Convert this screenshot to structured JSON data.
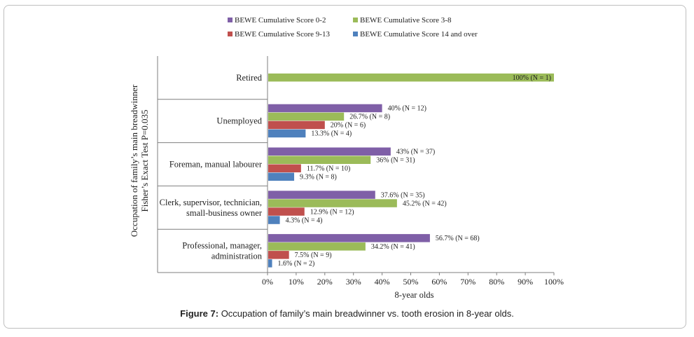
{
  "caption": {
    "label": "Figure 7:",
    "text": "Occupation of family’s main breadwinner vs. tooth erosion in 8-year olds."
  },
  "colors": {
    "series": [
      "#7f5fa7",
      "#9bbb59",
      "#c0504d",
      "#4f81bd"
    ],
    "axis": "#7f7f7f",
    "grid": "#d9d9d9"
  },
  "chart_data": {
    "type": "bar",
    "orientation": "horizontal",
    "title": "",
    "xlabel": "8-year olds",
    "ylabel_lines": [
      "Occupation of family’s main breadwinner",
      "Fisher’s Exact Test P=0.035"
    ],
    "xlim": [
      0,
      100
    ],
    "xticks": [
      "0%",
      "10%",
      "20%",
      "30%",
      "40%",
      "50%",
      "60%",
      "70%",
      "80%",
      "90%",
      "100%"
    ],
    "legend_position": "top",
    "categories": [
      {
        "lines": [
          "Retired"
        ]
      },
      {
        "lines": [
          "Unemployed"
        ]
      },
      {
        "lines": [
          "Foreman, manual labourer"
        ]
      },
      {
        "lines": [
          "Clerk, supervisor, technician,",
          "small-business owner"
        ]
      },
      {
        "lines": [
          "Professional, manager,",
          "administration"
        ]
      }
    ],
    "series": [
      {
        "name": "BEWE Cumulative Score 0-2",
        "values": [
          null,
          40,
          43,
          37.6,
          56.7
        ],
        "labels": [
          null,
          "40% (N = 12)",
          "43% (N = 37)",
          "37.6% (N = 35)",
          "56.7% (N = 68)"
        ]
      },
      {
        "name": "BEWE Cumulative Score 3-8",
        "values": [
          100,
          26.7,
          36,
          45.2,
          34.2
        ],
        "labels": [
          "100% (N = 1)",
          "26.7% (N = 8)",
          "36% (N = 31)",
          "45.2% (N = 42)",
          "34.2% (N = 41)"
        ]
      },
      {
        "name": "BEWE Cumulative Score 9-13",
        "values": [
          null,
          20,
          11.7,
          12.9,
          7.5
        ],
        "labels": [
          null,
          "20% (N = 6)",
          "11.7% (N = 10)",
          "12.9% (N = 12)",
          "7.5% (N = 9)"
        ]
      },
      {
        "name": "BEWE Cumulative Score 14 and over",
        "values": [
          null,
          13.3,
          9.3,
          4.3,
          1.6
        ],
        "labels": [
          null,
          "13.3% (N = 4)",
          "9.3% (N = 8)",
          "4.3% (N = 4)",
          "1.6% (N = 2)"
        ]
      }
    ]
  }
}
